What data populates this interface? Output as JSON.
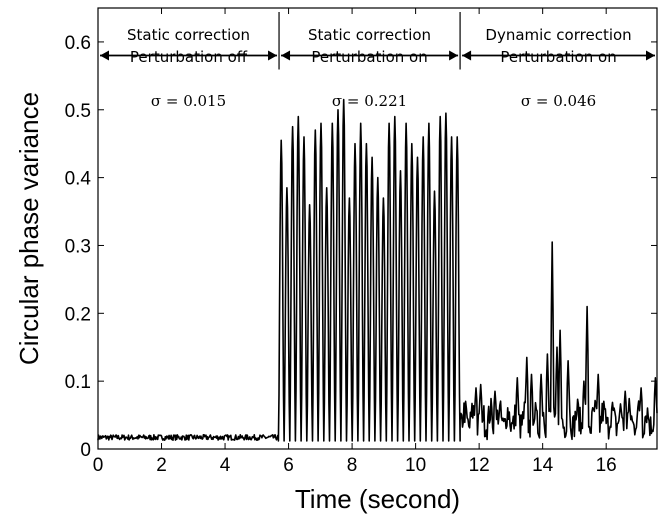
{
  "chart_data": {
    "type": "line",
    "xlabel": "Time (second)",
    "ylabel": "Circular phase variance",
    "xlim": [
      0,
      17.6
    ],
    "ylim": [
      0,
      0.65
    ],
    "xticks": [
      "0",
      "2",
      "4",
      "6",
      "8",
      "10",
      "12",
      "14",
      "16"
    ],
    "yticks": [
      "0",
      "0.1",
      "0.2",
      "0.3",
      "0.4",
      "0.5",
      "0.6"
    ],
    "grid": false,
    "legend": "none",
    "line_color": "#000000",
    "phases": [
      {
        "line1": "Static correction",
        "line2": "Perturbation off",
        "sigma": "σ = 0.015",
        "x_start": 0,
        "x_end": 5.7
      },
      {
        "line1": "Static correction",
        "line2": "Perturbation on",
        "sigma": "σ = 0.221",
        "x_start": 5.7,
        "x_end": 11.4
      },
      {
        "line1": "Dynamic correction",
        "line2": "Perturbation on",
        "sigma": "σ = 0.046",
        "x_start": 11.4,
        "x_end": 17.6
      }
    ],
    "boundaries_x": [
      5.7,
      11.4
    ],
    "series": [
      {
        "segments": [
          {
            "x_start": 0,
            "x_end": 5.68,
            "baseline": 0.017,
            "noise_amplitude": 0.004
          },
          {
            "x_start": 5.68,
            "x_end": 11.4,
            "oscillation_period": 0.2,
            "low": 0.012,
            "peaks": [
              0.455,
              0.385,
              0.475,
              0.49,
              0.46,
              0.36,
              0.47,
              0.48,
              0.385,
              0.48,
              0.5,
              0.515,
              0.37,
              0.45,
              0.48,
              0.45,
              0.43,
              0.4,
              0.37,
              0.48,
              0.49,
              0.41,
              0.48,
              0.45,
              0.43,
              0.46,
              0.48,
              0.38,
              0.49,
              0.495,
              0.46,
              0.46
            ]
          },
          {
            "x_start": 11.4,
            "x_end": 17.6,
            "baseline": 0.04,
            "noise_amplitude": 0.03,
            "spikes": [
              {
                "x": 11.9,
                "y": 0.09
              },
              {
                "x": 12.05,
                "y": 0.095
              },
              {
                "x": 12.5,
                "y": 0.085
              },
              {
                "x": 13.2,
                "y": 0.105
              },
              {
                "x": 13.5,
                "y": 0.135
              },
              {
                "x": 13.65,
                "y": 0.11
              },
              {
                "x": 13.95,
                "y": 0.11
              },
              {
                "x": 14.15,
                "y": 0.14
              },
              {
                "x": 14.3,
                "y": 0.305
              },
              {
                "x": 14.45,
                "y": 0.15
              },
              {
                "x": 14.55,
                "y": 0.175
              },
              {
                "x": 14.8,
                "y": 0.13
              },
              {
                "x": 15.3,
                "y": 0.1
              },
              {
                "x": 15.4,
                "y": 0.21
              },
              {
                "x": 15.75,
                "y": 0.11
              },
              {
                "x": 16.6,
                "y": 0.085
              },
              {
                "x": 17.1,
                "y": 0.09
              },
              {
                "x": 17.55,
                "y": 0.105
              }
            ]
          }
        ]
      }
    ]
  }
}
